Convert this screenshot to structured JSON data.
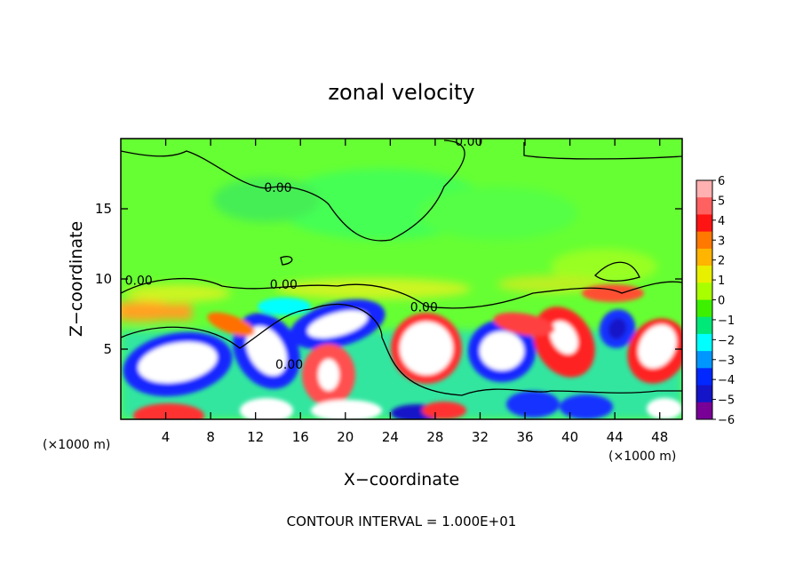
{
  "chart_data": {
    "type": "heatmap",
    "title": "zonal velocity",
    "xlabel": "X−coordinate",
    "ylabel": "Z−coordinate",
    "x_unit_left": "(×1000 m)",
    "x_unit_right": "(×1000 m)",
    "footer": "CONTOUR INTERVAL = 1.000E+01",
    "xlim": [
      0,
      50
    ],
    "ylim": [
      0,
      20
    ],
    "x_ticks": [
      4,
      8,
      12,
      16,
      20,
      24,
      28,
      32,
      36,
      40,
      44,
      48
    ],
    "y_ticks": [
      5,
      10,
      15
    ],
    "grid": false,
    "contour_labels": [
      {
        "text": "0.00",
        "x": 31,
        "y": 19.5
      },
      {
        "text": "0.00",
        "x": 14,
        "y": 16.2
      },
      {
        "text": "0.00",
        "x": 1.6,
        "y": 9.6
      },
      {
        "text": "0.00",
        "x": 14.5,
        "y": 9.3
      },
      {
        "text": "0.00",
        "x": 27,
        "y": 7.7
      },
      {
        "text": "0.00",
        "x": 15,
        "y": 3.6
      }
    ],
    "colorbar": {
      "ticks": [
        "6",
        "5",
        "4",
        "3",
        "2",
        "1",
        "0",
        "−1",
        "−2",
        "−3",
        "−4",
        "−5",
        "−6"
      ],
      "colors": [
        "#ffb0b0",
        "#ff6060",
        "#ff1414",
        "#ff7800",
        "#ffb400",
        "#e8f000",
        "#a8ff00",
        "#3cf000",
        "#00e878",
        "#00ffff",
        "#0096ff",
        "#0028ff",
        "#1414c8",
        "#780096"
      ]
    },
    "background_color": "#66ff33"
  }
}
